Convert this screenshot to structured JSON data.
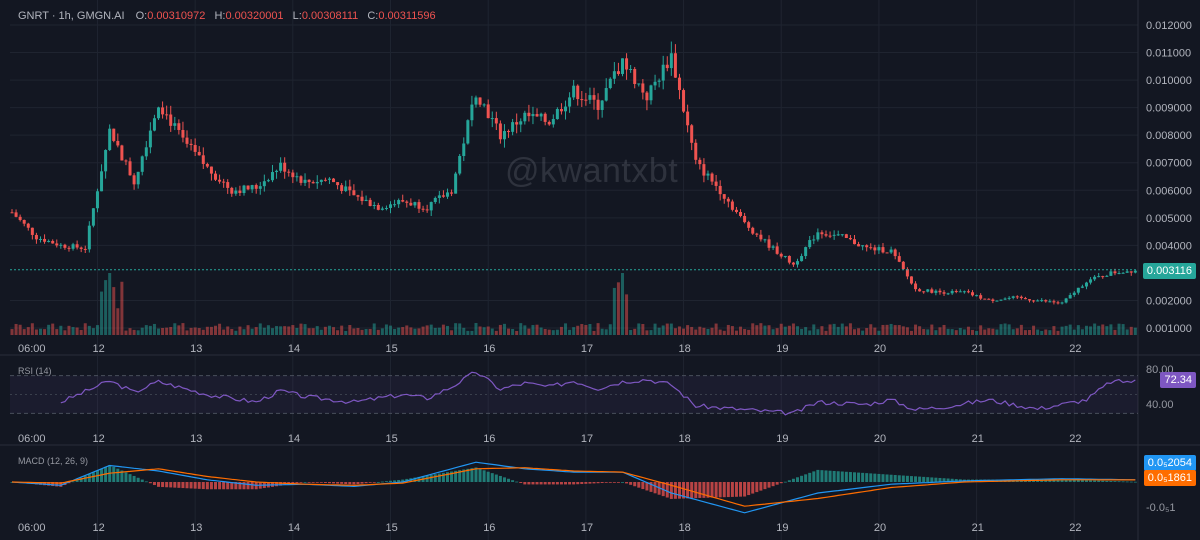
{
  "legend": {
    "symbol": "GNRT · 1h, GMGN.AI",
    "open_label": "O:",
    "open": "0.00310972",
    "high_label": "H:",
    "high": "0.00320001",
    "low_label": "L:",
    "low": "0.00308111",
    "close_label": "C:",
    "close": "0.00311596"
  },
  "watermark": "@kwantxbt",
  "x_ticks": [
    "06:00",
    "12",
    "13",
    "14",
    "15",
    "16",
    "17",
    "18",
    "19",
    "20",
    "21",
    "22"
  ],
  "price_axis": {
    "ticks": [
      "0.012000",
      "0.011000",
      "0.010000",
      "0.009000",
      "0.008000",
      "0.007000",
      "0.006000",
      "0.005000",
      "0.004000",
      "0.002000",
      "0.001000"
    ],
    "last_price_label": "0.003116"
  },
  "rsi": {
    "label": "RSI (14)",
    "ticks": [
      "80.00",
      "40.00"
    ],
    "current_label": "72.34"
  },
  "macd": {
    "label": "MACD (12, 26, 9)",
    "macd_label": "0.0₅2054",
    "signal_label": "0.0₅1861",
    "tick_label": "-0.0₅1"
  },
  "colors": {
    "background": "#131722",
    "up": "#26a69a",
    "down": "#ef5350",
    "grid": "#1f2430",
    "text": "#b2b5be",
    "rsi_line": "#7e57c2",
    "macd_line": "#2196f3",
    "signal_line": "#ff6d00"
  },
  "chart_data": [
    {
      "type": "candlestick",
      "title": "GNRT · 1h, GMGN.AI",
      "x_axis": [
        "06:00",
        "12",
        "13",
        "14",
        "15",
        "16",
        "17",
        "18",
        "19",
        "20",
        "21",
        "22"
      ],
      "ylim": [
        0.0006,
        0.0125
      ],
      "x": [
        0,
        6,
        12,
        18,
        24,
        30,
        36,
        42,
        48,
        54,
        60,
        66,
        72,
        78,
        84,
        90,
        96,
        102,
        108,
        114,
        120,
        126,
        132,
        138,
        144,
        150,
        156,
        162,
        168,
        174,
        180,
        186,
        192,
        198,
        204,
        210,
        216,
        222,
        228,
        234,
        240,
        246,
        252,
        258,
        264,
        270,
        276
      ],
      "close": [
        0.0052,
        0.0043,
        0.004,
        0.0039,
        0.0082,
        0.0063,
        0.0092,
        0.0078,
        0.0068,
        0.006,
        0.0061,
        0.0069,
        0.0063,
        0.0064,
        0.0058,
        0.0054,
        0.0056,
        0.0054,
        0.006,
        0.0096,
        0.008,
        0.0087,
        0.0085,
        0.0096,
        0.0091,
        0.0107,
        0.0094,
        0.0109,
        0.007,
        0.006,
        0.0048,
        0.004,
        0.0033,
        0.0045,
        0.0043,
        0.0039,
        0.0038,
        0.0024,
        0.0023,
        0.0023,
        0.002,
        0.0021,
        0.002,
        0.0019,
        0.0027,
        0.003,
        0.0031
      ],
      "volume_peaks": [
        {
          "hour": 24,
          "note": "volume spike"
        },
        {
          "hour": 150,
          "note": "volume spike"
        }
      ],
      "last_price": 0.003116
    },
    {
      "type": "line",
      "title": "RSI (14)",
      "ylim": [
        20,
        90
      ],
      "x": [
        12,
        24,
        30,
        36,
        48,
        60,
        66,
        72,
        84,
        96,
        102,
        108,
        114,
        120,
        126,
        132,
        138,
        144,
        150,
        156,
        162,
        168,
        180,
        192,
        198,
        210,
        216,
        222,
        228,
        240,
        252,
        264,
        270,
        276
      ],
      "values": [
        45,
        73,
        58,
        72,
        55,
        45,
        60,
        52,
        45,
        55,
        50,
        65,
        85,
        62,
        70,
        65,
        73,
        63,
        72,
        75,
        68,
        40,
        35,
        30,
        45,
        42,
        48,
        35,
        38,
        48,
        36,
        48,
        72,
        72.34
      ],
      "current": 72.34
    },
    {
      "type": "line",
      "title": "MACD (12, 26, 9)",
      "series": [
        {
          "name": "MACD",
          "values": [
            0.0,
            -0.3,
            1.5,
            1.0,
            0.2,
            -0.3,
            -0.2,
            -0.4,
            0.0,
            1.8,
            1.2,
            0.9,
            0.9,
            -1.0,
            -2.8,
            -1.0,
            -0.2,
            0.1,
            0.3,
            0.2
          ]
        },
        {
          "name": "Signal",
          "values": [
            0.0,
            -0.1,
            0.8,
            1.2,
            0.5,
            0.0,
            -0.2,
            -0.3,
            -0.1,
            1.2,
            1.3,
            1.0,
            0.9,
            -0.3,
            -2.2,
            -1.5,
            -0.5,
            0.0,
            0.2,
            0.19
          ]
        }
      ],
      "x": [
        0,
        12,
        24,
        36,
        48,
        60,
        72,
        84,
        96,
        114,
        126,
        138,
        150,
        162,
        180,
        198,
        216,
        234,
        258,
        276
      ]
    }
  ]
}
